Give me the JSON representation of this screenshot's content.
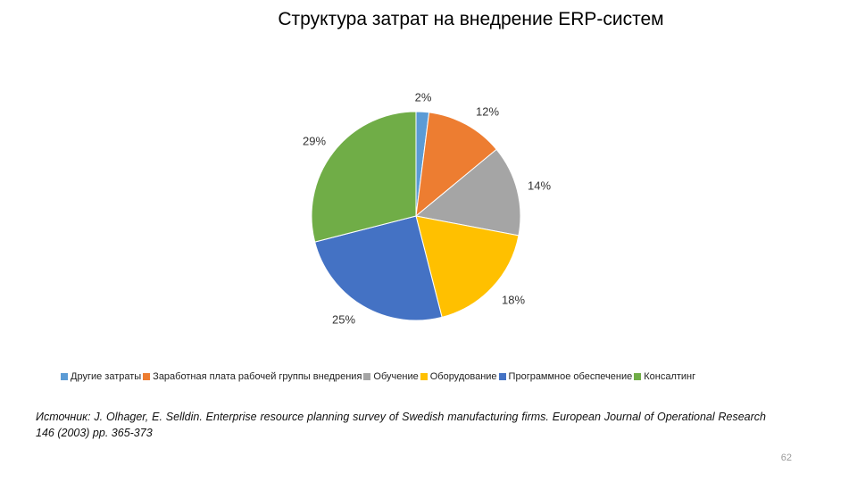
{
  "slide": {
    "title": "Структура затрат на внедрение ERP-систем",
    "source_text": "Источник: J. Olhager, E. Selldin. Enterprise resource planning survey of Swedish manufacturing firms. European Journal of Operational Research 146 (2003) pp. 365-373",
    "page_number": "62"
  },
  "chart_data": {
    "type": "pie",
    "title": "Структура затрат на внедрение ERP-систем",
    "categories": [
      "Другие затраты",
      "Заработная плата рабочей группы внедрения",
      "Обучение",
      "Оборудование",
      "Программное обеспечение",
      "Консалтинг"
    ],
    "values": [
      2,
      12,
      14,
      18,
      25,
      29
    ],
    "value_labels": [
      "2%",
      "12%",
      "14%",
      "18%",
      "25%",
      "29%"
    ],
    "colors": [
      "#5B9BD5",
      "#ED7D31",
      "#A5A5A5",
      "#FFC000",
      "#4472C4",
      "#70AD47"
    ],
    "start_angle": "12 o'clock",
    "direction": "clockwise",
    "legend_position": "bottom"
  }
}
